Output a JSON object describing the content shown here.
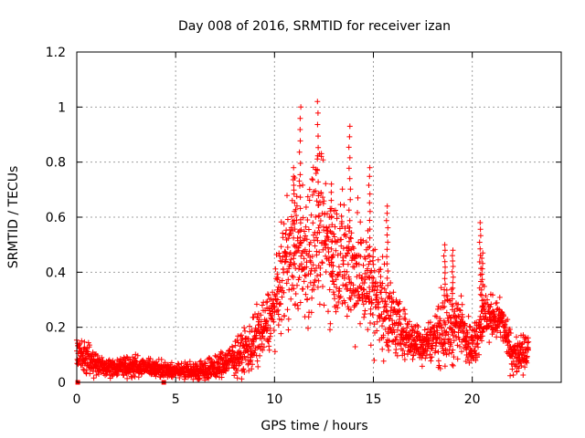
{
  "chart_data": {
    "type": "scatter",
    "title": "Day 008 of 2016, SRMTID for receiver izan",
    "xlabel": "GPS time / hours",
    "ylabel": "SRMTID / TECUs",
    "xlim": [
      0,
      24.5
    ],
    "ylim": [
      0,
      1.2
    ],
    "x_ticks": [
      0,
      5,
      10,
      15,
      20
    ],
    "x_tick_labels": [
      "0",
      "5",
      "10",
      "15",
      "20"
    ],
    "y_ticks": [
      0,
      0.2,
      0.4,
      0.6,
      0.8,
      1.0,
      1.2
    ],
    "y_tick_labels": [
      "0",
      "0.2",
      "0.4",
      "0.6",
      "0.8",
      "1",
      "1.2"
    ],
    "grid": true,
    "marker": "plus",
    "color": "#ff0000",
    "square_markers": [
      [
        0.05,
        0.0
      ],
      [
        4.4,
        0.0
      ]
    ],
    "profile": [
      [
        0.0,
        0.1,
        0.04
      ],
      [
        0.5,
        0.08,
        0.04
      ],
      [
        1.0,
        0.06,
        0.03
      ],
      [
        2.0,
        0.05,
        0.02
      ],
      [
        3.0,
        0.06,
        0.03
      ],
      [
        4.0,
        0.05,
        0.02
      ],
      [
        5.0,
        0.04,
        0.02
      ],
      [
        6.0,
        0.04,
        0.02
      ],
      [
        7.0,
        0.05,
        0.03
      ],
      [
        8.0,
        0.09,
        0.04
      ],
      [
        8.6,
        0.12,
        0.06
      ],
      [
        9.0,
        0.15,
        0.08
      ],
      [
        9.5,
        0.2,
        0.07
      ],
      [
        10.0,
        0.27,
        0.08
      ],
      [
        10.5,
        0.42,
        0.14
      ],
      [
        11.0,
        0.5,
        0.17
      ],
      [
        11.5,
        0.45,
        0.18
      ],
      [
        12.0,
        0.55,
        0.22
      ],
      [
        12.5,
        0.52,
        0.18
      ],
      [
        13.0,
        0.47,
        0.16
      ],
      [
        13.5,
        0.45,
        0.17
      ],
      [
        14.0,
        0.4,
        0.15
      ],
      [
        14.5,
        0.38,
        0.15
      ],
      [
        15.0,
        0.33,
        0.13
      ],
      [
        15.5,
        0.28,
        0.13
      ],
      [
        16.0,
        0.22,
        0.08
      ],
      [
        16.5,
        0.18,
        0.06
      ],
      [
        17.0,
        0.15,
        0.05
      ],
      [
        17.5,
        0.14,
        0.05
      ],
      [
        18.0,
        0.16,
        0.05
      ],
      [
        18.5,
        0.2,
        0.1
      ],
      [
        19.0,
        0.2,
        0.09
      ],
      [
        19.5,
        0.21,
        0.06
      ],
      [
        20.0,
        0.12,
        0.05
      ],
      [
        20.5,
        0.23,
        0.07
      ],
      [
        21.0,
        0.24,
        0.05
      ],
      [
        21.5,
        0.22,
        0.05
      ],
      [
        22.0,
        0.1,
        0.05
      ],
      [
        22.5,
        0.09,
        0.05
      ],
      [
        22.8,
        0.12,
        0.04
      ]
    ],
    "peaks": [
      [
        11.3,
        1.0
      ],
      [
        12.2,
        1.02
      ],
      [
        13.8,
        0.93
      ],
      [
        14.8,
        0.78
      ],
      [
        15.7,
        0.64
      ],
      [
        11.0,
        0.78
      ],
      [
        12.9,
        0.72
      ],
      [
        18.6,
        0.5
      ],
      [
        19.0,
        0.48
      ],
      [
        20.4,
        0.58
      ],
      [
        20.5,
        0.47
      ]
    ],
    "x_range": [
      0.0,
      22.85
    ],
    "point_count": 2400
  }
}
